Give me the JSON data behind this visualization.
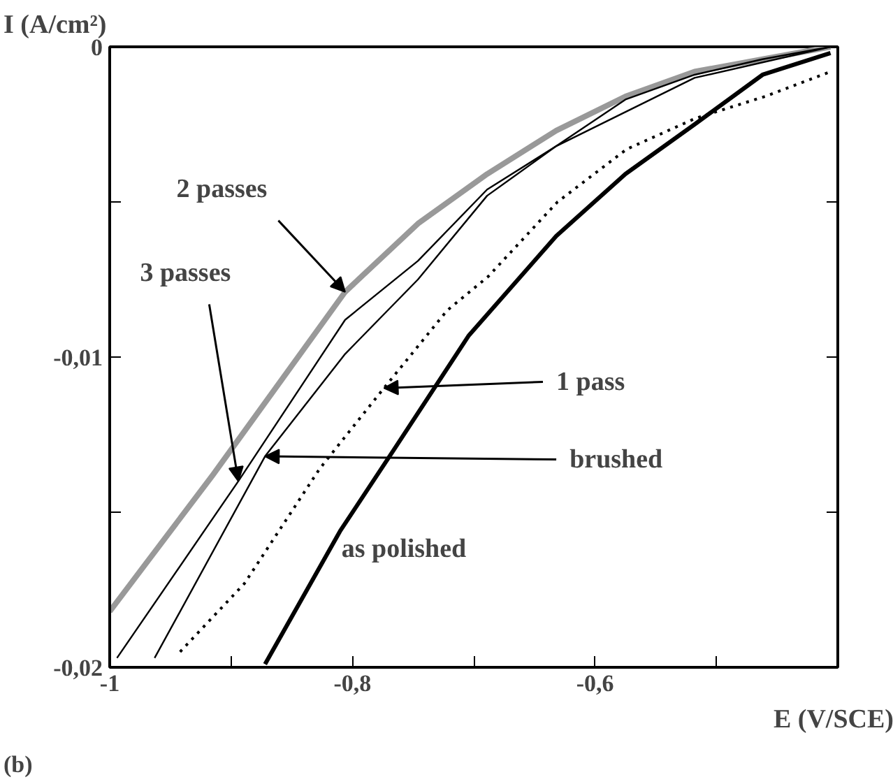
{
  "chart_data": {
    "type": "line",
    "xlabel": "E (V/SCE)",
    "ylabel": "I (A/cm²)",
    "xlim": [
      -1,
      -0.4
    ],
    "ylim": [
      -0.02,
      0
    ],
    "xticks": [
      {
        "value": -1,
        "label": "-1"
      },
      {
        "value": -0.9,
        "label": null
      },
      {
        "value": -0.8,
        "label": "-0,8"
      },
      {
        "value": -0.7,
        "label": null
      },
      {
        "value": -0.6,
        "label": "-0,6"
      },
      {
        "value": -0.5,
        "label": null
      }
    ],
    "yticks": [
      {
        "value": -0.02,
        "label": "-0,02"
      },
      {
        "value": -0.015,
        "label": null
      },
      {
        "value": -0.01,
        "label": "-0,01"
      },
      {
        "value": -0.005,
        "label": null
      },
      {
        "value": 0,
        "label": "0"
      }
    ],
    "grid": false,
    "series": [
      {
        "color": "#999999",
        "line_style": "solid",
        "x": [
          -1.0,
          -0.915,
          -0.806,
          -0.746,
          -0.689,
          -0.632,
          -0.575,
          -0.518,
          -0.462,
          -0.406
        ],
        "values": [
          -0.0182,
          -0.0138,
          -0.0079,
          -0.0057,
          -0.0041,
          -0.0027,
          -0.0016,
          -0.0008,
          -0.0004,
          0
        ]
      },
      {
        "color": "#000000",
        "line_style": "solid",
        "x": [
          -0.994,
          -0.894,
          -0.806,
          -0.746,
          -0.689,
          -0.632,
          -0.575,
          -0.518,
          -0.462,
          -0.406
        ],
        "values": [
          -0.0197,
          -0.014,
          -0.0088,
          -0.0069,
          -0.0046,
          -0.0032,
          -0.0017,
          -0.0009,
          -0.0004,
          0
        ]
      },
      {
        "color": "#000000",
        "line_style": "solid",
        "x": [
          -0.963,
          -0.872,
          -0.806,
          -0.746,
          -0.689,
          -0.632,
          -0.518,
          -0.406
        ],
        "values": [
          -0.0197,
          -0.0132,
          -0.0099,
          -0.0075,
          -0.0048,
          -0.0032,
          -0.001,
          0
        ]
      },
      {
        "color": "#000000",
        "line_style": "dotted",
        "x": [
          -0.942,
          -0.889,
          -0.827,
          -0.774,
          -0.722,
          -0.688,
          -0.631,
          -0.574,
          -0.517,
          -0.46,
          -0.406
        ],
        "values": [
          -0.0195,
          -0.0173,
          -0.0136,
          -0.011,
          -0.0085,
          -0.0074,
          -0.005,
          -0.0033,
          -0.0023,
          -0.0016,
          -0.0008
        ]
      },
      {
        "color": "#000000",
        "line_style": "solid",
        "x": [
          -0.872,
          -0.81,
          -0.766,
          -0.704,
          -0.632,
          -0.575,
          -0.518,
          -0.462,
          -0.406
        ],
        "values": [
          -0.0199,
          -0.0156,
          -0.013,
          -0.0093,
          -0.0061,
          -0.0041,
          -0.0025,
          -0.0009,
          -0.0002
        ]
      }
    ],
    "annotations": [
      {
        "text": "2 passes",
        "x": -0.806,
        "y": -0.0079
      },
      {
        "text": "3 passes",
        "x": -0.894,
        "y": -0.014
      },
      {
        "text": "1 pass",
        "x": -0.774,
        "y": -0.011
      },
      {
        "text": "brushed",
        "x": -0.872,
        "y": -0.0132
      },
      "as polished",
      "(b)"
    ]
  }
}
